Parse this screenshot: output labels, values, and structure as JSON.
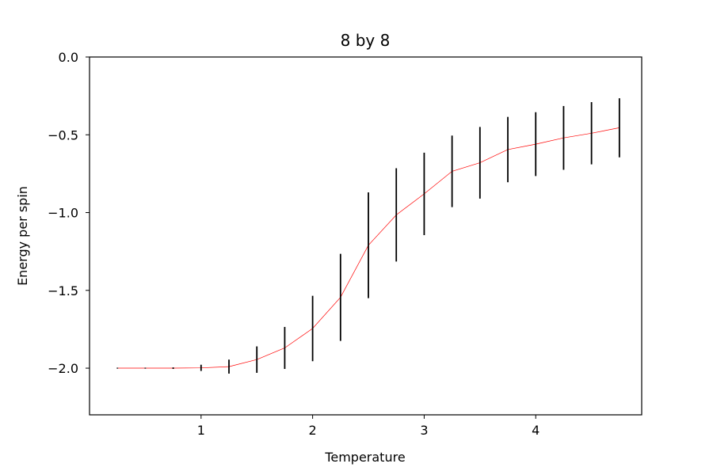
{
  "chart_data": {
    "type": "line",
    "title": "8 by 8",
    "xlabel": "Temperature",
    "ylabel": "Energy per spin",
    "xlim": [
      0.0,
      4.95
    ],
    "ylim": [
      -2.3,
      0.0
    ],
    "grid": false,
    "xticks": [
      {
        "value": 1,
        "label": "1"
      },
      {
        "value": 2,
        "label": "2"
      },
      {
        "value": 3,
        "label": "3"
      },
      {
        "value": 4,
        "label": "4"
      }
    ],
    "yticks": [
      {
        "value": 0.0,
        "label": "0.0"
      },
      {
        "value": -0.5,
        "label": "−0.5"
      },
      {
        "value": -1.0,
        "label": "−1.0"
      },
      {
        "value": -1.5,
        "label": "−1.5"
      },
      {
        "value": -2.0,
        "label": "−2.0"
      }
    ],
    "series": [
      {
        "line_color": "#ff0000",
        "errorbar_color": "#000000",
        "x": [
          0.25,
          0.5,
          0.75,
          1.0,
          1.25,
          1.5,
          1.75,
          2.0,
          2.25,
          2.5,
          2.75,
          3.0,
          3.25,
          3.5,
          3.75,
          4.0,
          4.25,
          4.5,
          4.75
        ],
        "y": [
          -2.0,
          -2.0,
          -2.0,
          -1.998,
          -1.99,
          -1.945,
          -1.87,
          -1.745,
          -1.545,
          -1.21,
          -1.015,
          -0.88,
          -0.735,
          -0.68,
          -0.595,
          -0.56,
          -0.52,
          -0.49,
          -0.455
        ],
        "yerr": [
          0.0,
          0.0,
          0.005,
          0.02,
          0.045,
          0.085,
          0.135,
          0.21,
          0.28,
          0.34,
          0.3,
          0.265,
          0.23,
          0.23,
          0.21,
          0.205,
          0.205,
          0.2,
          0.19
        ]
      }
    ]
  }
}
